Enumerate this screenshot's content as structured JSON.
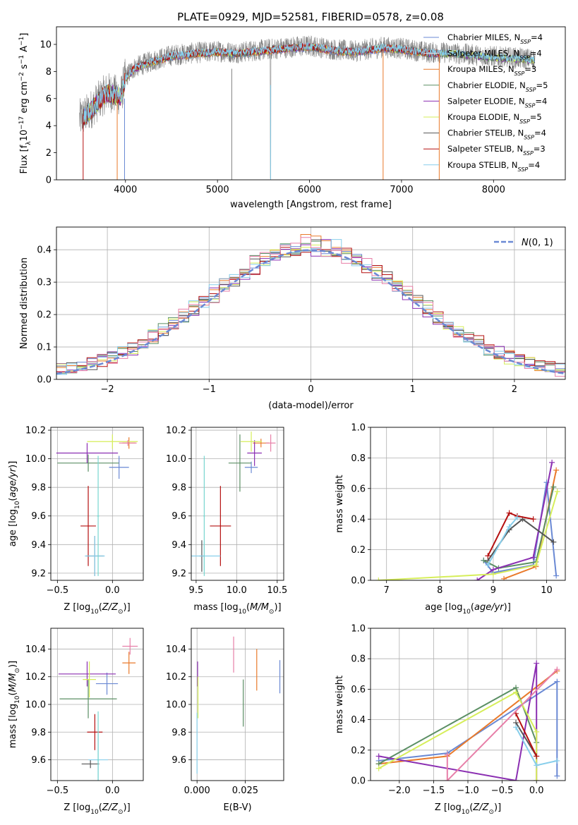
{
  "figure_title": "PLATE=0929, MJD=52581, FIBERID=0578, z=0.08",
  "colors": {
    "Chabrier MILES": "#6a89d4",
    "Salpeter MILES": "#e2e2e2",
    "Kroupa MILES": "#e97a2b",
    "Chabrier ELODIE": "#5b8f64",
    "Salpeter ELODIE": "#8b2fb2",
    "Kroupa ELODIE": "#d6ee5a",
    "Chabrier STELIB": "#555555",
    "Salpeter STELIB": "#b51010",
    "Kroupa STELIB": "#87ceeb",
    "pink": "#e77fa8",
    "teal": "#78d6d0"
  },
  "chart_data": [
    {
      "type": "line",
      "id": "spectrum",
      "xlabel": "wavelength [Angstrom, rest frame]",
      "ylabel": "Flux [f_λ 10^-17 erg cm^-2 s^-1 A^-1]",
      "xlim": [
        3250,
        8780
      ],
      "ylim": [
        0,
        11.3
      ],
      "xticks": [
        4000,
        5000,
        6000,
        7000,
        8000
      ],
      "yticks": [
        0,
        2,
        4,
        6,
        8,
        10
      ],
      "legend_position": "upper right",
      "data_envelope": {
        "x": [
          3500,
          3600,
          3700,
          3800,
          3950,
          4000,
          4100,
          4300,
          4500,
          4800,
          5000,
          5200,
          5500,
          5800,
          6000,
          6300,
          6500,
          6800,
          7000,
          7300,
          7500,
          8000,
          8450
        ],
        "y": [
          4.5,
          5.0,
          5.8,
          6.5,
          6.2,
          7.6,
          8.3,
          8.8,
          9.2,
          9.4,
          9.5,
          9.4,
          9.6,
          9.8,
          9.9,
          9.6,
          9.5,
          9.8,
          9.7,
          9.4,
          9.4,
          9.1,
          8.9
        ]
      },
      "series": [
        {
          "name": "Chabrier MILES, N_SSP=4"
        },
        {
          "name": "Salpeter MILES, N_SSP=4"
        },
        {
          "name": "Kroupa MILES, N_SSP=3"
        },
        {
          "name": "Chabrier ELODIE, N_SSP=5"
        },
        {
          "name": "Salpeter ELODIE, N_SSP=4"
        },
        {
          "name": "Kroupa ELODIE, N_SSP=5"
        },
        {
          "name": "Chabrier STELIB, N_SSP=4"
        },
        {
          "name": "Salpeter STELIB, N_SSP=3"
        },
        {
          "name": "Kroupa STELIB, N_SSP=4"
        }
      ]
    },
    {
      "type": "area",
      "id": "residuals",
      "xlabel": "(data-model)/error",
      "ylabel": "Normed distribution",
      "xlim": [
        -2.5,
        2.5
      ],
      "ylim": [
        0,
        0.47
      ],
      "xticks": [
        -2,
        -1,
        0,
        1,
        2
      ],
      "yticks": [
        0.0,
        0.1,
        0.2,
        0.3,
        0.4
      ],
      "grid": true,
      "legend_position": "upper right",
      "gaussian": {
        "name": "N(0,1)",
        "mean": 0,
        "sigma": 1
      },
      "histogram_bin_width": 0.1
    },
    {
      "type": "scatter",
      "id": "age-vs-metallicity",
      "xlabel": "Z [log10(Z/Z⊙)]",
      "ylabel": "age  [log10(age/yr)]",
      "xlim": [
        -0.56,
        0.28
      ],
      "ylim": [
        9.15,
        10.22
      ],
      "xticks": [
        -0.5,
        0.0
      ],
      "yticks": [
        9.2,
        9.4,
        9.6,
        9.8,
        10.0,
        10.2
      ],
      "points": [
        {
          "s": "Chabrier MILES",
          "x": 0.06,
          "xe": 0.09,
          "y": 9.94,
          "ye": 0.08
        },
        {
          "s": "Kroupa MILES",
          "x": 0.15,
          "xe": 0.06,
          "y": 10.11,
          "ye": 0.04
        },
        {
          "s": "Chabrier ELODIE",
          "x": -0.22,
          "xe": 0.28,
          "y": 9.97,
          "ye": 0.06
        },
        {
          "s": "Salpeter ELODIE",
          "x": -0.23,
          "xe": 0.28,
          "y": 10.04,
          "ye": 0.07
        },
        {
          "s": "Kroupa ELODIE",
          "x": 0.0,
          "xe": 0.23,
          "y": 10.12,
          "ye": 0.05
        },
        {
          "s": "Chabrier STELIB",
          "x": -0.16,
          "xe": 0.08,
          "y": 9.32,
          "ye": 0.14
        },
        {
          "s": "Salpeter STELIB",
          "x": -0.22,
          "xe": 0.07,
          "y": 9.53,
          "ye": 0.28
        },
        {
          "s": "Kroupa STELIB",
          "x": -0.16,
          "xe": 0.09,
          "y": 9.32,
          "ye": 0.14
        },
        {
          "s": "teal",
          "x": -0.13,
          "xe": 0.01,
          "y": 9.6,
          "ye": 0.42
        },
        {
          "s": "pink",
          "x": 0.14,
          "xe": 0.08,
          "y": 10.11,
          "ye": 0.02
        }
      ]
    },
    {
      "type": "scatter",
      "id": "age-vs-mass",
      "xlabel": "mass [log10(M/M⊙)]",
      "ylabel": "",
      "xlim": [
        9.44,
        10.58
      ],
      "ylim": [
        9.15,
        10.22
      ],
      "xticks": [
        9.5,
        10.0,
        10.5
      ],
      "yticks": [
        9.2,
        9.4,
        9.6,
        9.8,
        10.0,
        10.2
      ],
      "points": [
        {
          "s": "Chabrier MILES",
          "x": 10.18,
          "xe": 0.08,
          "y": 9.94,
          "ye": 0.04
        },
        {
          "s": "Kroupa MILES",
          "x": 10.3,
          "xe": 0.1,
          "y": 10.11,
          "ye": 0.03
        },
        {
          "s": "Chabrier ELODIE",
          "x": 10.04,
          "xe": 0.14,
          "y": 9.97,
          "ye": 0.2
        },
        {
          "s": "Salpeter ELODIE",
          "x": 10.22,
          "xe": 0.09,
          "y": 10.04,
          "ye": 0.09
        },
        {
          "s": "Kroupa ELODIE",
          "x": 10.18,
          "xe": 0.13,
          "y": 10.12,
          "ye": 0.07
        },
        {
          "s": "Chabrier STELIB",
          "x": 9.57,
          "xe": 0.03,
          "y": 9.32,
          "ye": 0.11
        },
        {
          "s": "Salpeter STELIB",
          "x": 9.8,
          "xe": 0.13,
          "y": 9.53,
          "ye": 0.28
        },
        {
          "s": "Kroupa STELIB",
          "x": 9.6,
          "xe": 0.2,
          "y": 9.32,
          "ye": 0.1
        },
        {
          "s": "teal",
          "x": 9.6,
          "xe": 0.01,
          "y": 9.6,
          "ye": 0.42
        },
        {
          "s": "pink",
          "x": 10.42,
          "xe": 0.06,
          "y": 10.11,
          "ye": 0.06
        }
      ]
    },
    {
      "type": "line",
      "id": "weight-vs-age",
      "xlabel": "age  [log10(age/yr)]",
      "ylabel": "mass weight",
      "xlim": [
        6.7,
        10.35
      ],
      "ylim": [
        0,
        1.0
      ],
      "xticks": [
        7,
        8,
        9,
        10
      ],
      "yticks": [
        0.0,
        0.2,
        0.4,
        0.6,
        0.8,
        1.0
      ],
      "grid": true,
      "series": [
        {
          "s": "Chabrier MILES",
          "x": [
            8.82,
            9.0,
            9.75,
            10.0,
            10.18
          ],
          "y": [
            0.13,
            0.05,
            0.1,
            0.64,
            0.03
          ]
        },
        {
          "s": "Kroupa MILES",
          "x": [
            9.2,
            9.8,
            10.18
          ],
          "y": [
            0.01,
            0.09,
            0.72
          ]
        },
        {
          "s": "Chabrier ELODIE",
          "x": [
            8.82,
            9.1,
            9.8,
            10.13
          ],
          "y": [
            0.13,
            0.08,
            0.12,
            0.61
          ]
        },
        {
          "s": "Salpeter ELODIE",
          "x": [
            8.7,
            9.0,
            9.75,
            10.1
          ],
          "y": [
            0.0,
            0.07,
            0.15,
            0.77
          ]
        },
        {
          "s": "Kroupa ELODIE",
          "x": [
            6.85,
            9.0,
            9.8,
            10.2
          ],
          "y": [
            0.0,
            0.04,
            0.1,
            0.58
          ]
        },
        {
          "s": "Chabrier STELIB",
          "x": [
            8.9,
            9.3,
            9.55,
            10.13
          ],
          "y": [
            0.13,
            0.33,
            0.4,
            0.25
          ]
        },
        {
          "s": "Salpeter STELIB",
          "x": [
            8.9,
            9.3,
            9.45,
            9.75
          ],
          "y": [
            0.16,
            0.44,
            0.42,
            0.4
          ]
        },
        {
          "s": "Kroupa STELIB",
          "x": [
            8.9,
            9.3,
            9.45
          ],
          "y": [
            0.1,
            0.35,
            0.41
          ]
        }
      ]
    },
    {
      "type": "scatter",
      "id": "mass-vs-metallicity",
      "xlabel": "Z [log10(Z/Z⊙)]",
      "ylabel": "mass [log10(M/M⊙)]",
      "xlim": [
        -0.56,
        0.28
      ],
      "ylim": [
        9.45,
        10.55
      ],
      "xticks": [
        -0.5,
        0.0
      ],
      "yticks": [
        9.6,
        9.8,
        10.0,
        10.2,
        10.4
      ],
      "points": [
        {
          "s": "Chabrier MILES",
          "x": -0.05,
          "xe": 0.1,
          "y": 10.15,
          "ye": 0.08
        },
        {
          "s": "Kroupa MILES",
          "x": 0.15,
          "xe": 0.06,
          "y": 10.3,
          "ye": 0.08
        },
        {
          "s": "Chabrier ELODIE",
          "x": -0.22,
          "xe": 0.26,
          "y": 10.04,
          "ye": 0.14
        },
        {
          "s": "Salpeter ELODIE",
          "x": -0.23,
          "xe": 0.26,
          "y": 10.22,
          "ye": 0.09
        },
        {
          "s": "Kroupa ELODIE",
          "x": -0.21,
          "xe": 0.06,
          "y": 10.18,
          "ye": 0.13
        },
        {
          "s": "Chabrier STELIB",
          "x": -0.2,
          "xe": 0.08,
          "y": 9.57,
          "ye": 0.03
        },
        {
          "s": "Salpeter STELIB",
          "x": -0.16,
          "xe": 0.07,
          "y": 9.8,
          "ye": 0.13
        },
        {
          "s": "Kroupa STELIB",
          "x": -0.13,
          "xe": 0.09,
          "y": 9.6,
          "ye": 0.2
        },
        {
          "s": "teal",
          "x": -0.13,
          "xe": 0.01,
          "y": 9.6,
          "ye": 0.35
        },
        {
          "s": "pink",
          "x": 0.16,
          "xe": 0.07,
          "y": 10.42,
          "ye": 0.06
        }
      ]
    },
    {
      "type": "scatter",
      "id": "mass-vs-extinction",
      "xlabel": "E(B-V)",
      "ylabel": "",
      "xlim": [
        -0.003,
        0.045
      ],
      "ylim": [
        9.45,
        10.55
      ],
      "xticks": [
        0.0,
        0.025
      ],
      "xticklabels": [
        "0.000",
        "0.025"
      ],
      "yticks": [
        9.6,
        9.8,
        10.0,
        10.2,
        10.4
      ],
      "points": [
        {
          "s": "Chabrier MILES",
          "x": 0.043,
          "xe": 0,
          "y": 10.2,
          "ye": 0.12
        },
        {
          "s": "Kroupa MILES",
          "x": 0.031,
          "xe": 0,
          "y": 10.25,
          "ye": 0.15
        },
        {
          "s": "Chabrier ELODIE",
          "x": 0.024,
          "xe": 0,
          "y": 10.01,
          "ye": 0.17
        },
        {
          "s": "Salpeter ELODIE",
          "x": 0.0003,
          "xe": 0,
          "y": 10.22,
          "ye": 0.09
        },
        {
          "s": "Kroupa ELODIE",
          "x": 0.0005,
          "xe": 0,
          "y": 10.05,
          "ye": 0.15
        },
        {
          "s": "Kroupa STELIB",
          "x": 0.0,
          "xe": 0,
          "y": 9.72,
          "ye": 0.22
        },
        {
          "s": "pink",
          "x": 0.019,
          "xe": 0,
          "y": 10.36,
          "ye": 0.13
        }
      ]
    },
    {
      "type": "line",
      "id": "weight-vs-metallicity",
      "xlabel": "Z [log10(Z/Z⊙)]",
      "ylabel": "mass weight",
      "xlim": [
        -2.42,
        0.42
      ],
      "ylim": [
        0,
        1.0
      ],
      "xticks": [
        -2.0,
        -1.5,
        -1.0,
        -0.5,
        0.0
      ],
      "yticks": [
        0.0,
        0.2,
        0.4,
        0.6,
        0.8,
        1.0
      ],
      "grid": true,
      "series": [
        {
          "s": "Chabrier MILES",
          "x": [
            -2.3,
            -1.3,
            0.3,
            0.3
          ],
          "y": [
            0.13,
            0.18,
            0.65,
            0.03
          ]
        },
        {
          "s": "Kroupa MILES",
          "x": [
            -2.3,
            -1.3,
            0.3
          ],
          "y": [
            0.11,
            0.16,
            0.72
          ]
        },
        {
          "s": "Chabrier ELODIE",
          "x": [
            -2.3,
            -0.3,
            0.0
          ],
          "y": [
            0.11,
            0.61,
            0.25
          ]
        },
        {
          "s": "Salpeter ELODIE",
          "x": [
            -2.3,
            -0.3,
            0.0,
            0.0
          ],
          "y": [
            0.16,
            0.0,
            0.77,
            0.0
          ]
        },
        {
          "s": "Kroupa ELODIE",
          "x": [
            -2.3,
            -0.3,
            0.0,
            0.0
          ],
          "y": [
            0.08,
            0.58,
            0.32,
            0.0
          ]
        },
        {
          "s": "Chabrier STELIB",
          "x": [
            -0.3,
            0.0
          ],
          "y": [
            0.38,
            0.16
          ]
        },
        {
          "s": "Salpeter STELIB",
          "x": [
            -0.3,
            0.0
          ],
          "y": [
            0.44,
            0.16
          ]
        },
        {
          "s": "Kroupa STELIB",
          "x": [
            -0.3,
            0.0,
            0.3
          ],
          "y": [
            0.35,
            0.1,
            0.13
          ]
        },
        {
          "s": "pink",
          "x": [
            -1.3,
            -1.3,
            0.3
          ],
          "y": [
            0.17,
            0.0,
            0.73
          ]
        }
      ]
    }
  ]
}
